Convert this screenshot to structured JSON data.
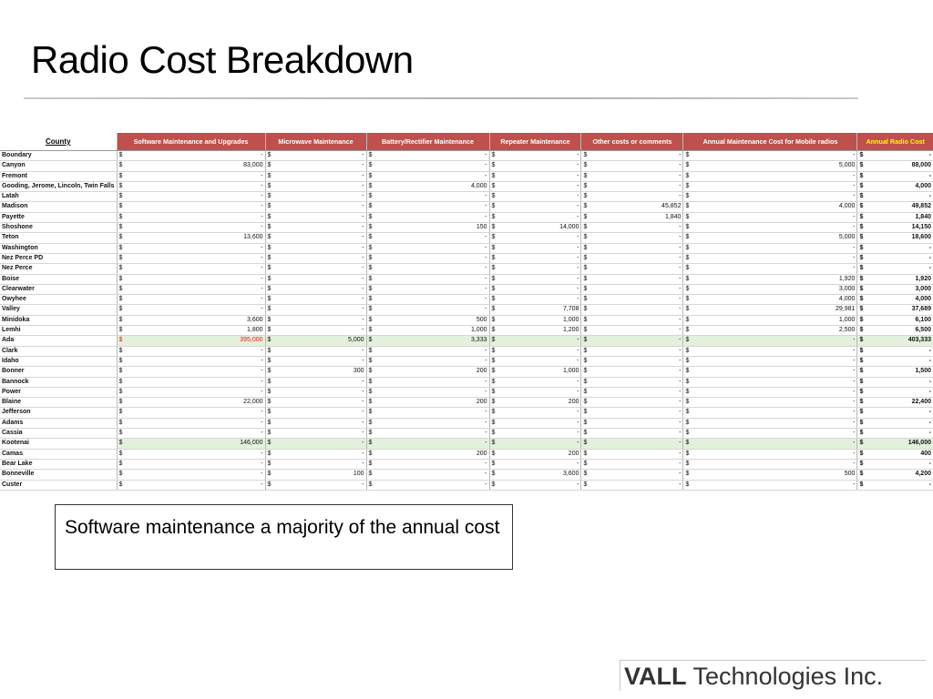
{
  "slide": {
    "title": "Radio Cost Breakdown",
    "callout": "Software maintenance a majority of the annual cost",
    "logo_bold": "VALL",
    "logo_rest": "Technologies Inc."
  },
  "table": {
    "headers": [
      "County",
      "Software Maintenance and Upgrades",
      "Microwave Maintenance",
      "Battery/Rectifier Maintenance",
      "Repeater Maintenance",
      "Other costs or comments",
      "Annual Maintenance Cost for Mobile radios",
      "Annual Radio Cost"
    ],
    "currency": "$",
    "rows": [
      {
        "county": "Boundary",
        "values": [
          "-",
          "-",
          "-",
          "-",
          "-",
          "-",
          "-"
        ]
      },
      {
        "county": "Canyon",
        "values": [
          "83,000",
          "-",
          "-",
          "-",
          "-",
          "5,000",
          "88,000"
        ]
      },
      {
        "county": "Fremont",
        "values": [
          "-",
          "-",
          "-",
          "-",
          "-",
          "-",
          "-"
        ]
      },
      {
        "county": "Gooding, Jerome, Lincoln, Twin Falls",
        "values": [
          "-",
          "-",
          "4,000",
          "-",
          "-",
          "-",
          "4,000"
        ]
      },
      {
        "county": "Latah",
        "values": [
          "-",
          "-",
          "-",
          "-",
          "-",
          "-",
          "-"
        ]
      },
      {
        "county": "Madison",
        "values": [
          "-",
          "-",
          "-",
          "-",
          "45,852",
          "4,000",
          "49,852"
        ]
      },
      {
        "county": "Payette",
        "values": [
          "-",
          "-",
          "-",
          "-",
          "1,840",
          "-",
          "1,840"
        ]
      },
      {
        "county": "Shoshone",
        "values": [
          "-",
          "-",
          "150",
          "14,000",
          "-",
          "-",
          "14,150"
        ]
      },
      {
        "county": "Teton",
        "values": [
          "13,600",
          "-",
          "-",
          "-",
          "-",
          "5,000",
          "18,600"
        ]
      },
      {
        "county": "Washington",
        "values": [
          "-",
          "-",
          "-",
          "-",
          "-",
          "-",
          "-"
        ]
      },
      {
        "county": "Nez Perce PD",
        "values": [
          "-",
          "-",
          "-",
          "-",
          "-",
          "-",
          "-"
        ]
      },
      {
        "county": "Nez Perce",
        "values": [
          "-",
          "-",
          "-",
          "-",
          "-",
          "-",
          "-"
        ]
      },
      {
        "county": "Boise",
        "values": [
          "-",
          "-",
          "-",
          "-",
          "-",
          "1,920",
          "1,920"
        ]
      },
      {
        "county": "Clearwater",
        "values": [
          "-",
          "-",
          "-",
          "-",
          "-",
          "3,000",
          "3,000"
        ]
      },
      {
        "county": "Owyhee",
        "values": [
          "-",
          "-",
          "-",
          "-",
          "-",
          "4,000",
          "4,000"
        ]
      },
      {
        "county": "Valley",
        "values": [
          "-",
          "-",
          "-",
          "7,708",
          "-",
          "29,981",
          "37,689"
        ]
      },
      {
        "county": "Minidoka",
        "values": [
          "3,600",
          "-",
          "500",
          "1,000",
          "-",
          "1,000",
          "6,100"
        ]
      },
      {
        "county": "Lemhi",
        "values": [
          "1,800",
          "-",
          "1,000",
          "1,200",
          "-",
          "2,500",
          "6,500"
        ]
      },
      {
        "county": "Ada",
        "values": [
          "395,000",
          "5,000",
          "3,333",
          "-",
          "-",
          "-",
          "403,333"
        ],
        "highlight": true,
        "red_first": true
      },
      {
        "county": "Clark",
        "values": [
          "-",
          "-",
          "-",
          "-",
          "-",
          "-",
          "-"
        ]
      },
      {
        "county": "Idaho",
        "values": [
          "-",
          "-",
          "-",
          "-",
          "-",
          "-",
          "-"
        ]
      },
      {
        "county": "Bonner",
        "values": [
          "-",
          "300",
          "200",
          "1,000",
          "-",
          "-",
          "1,500"
        ]
      },
      {
        "county": "Bannock",
        "values": [
          "-",
          "-",
          "-",
          "-",
          "-",
          "-",
          "-"
        ]
      },
      {
        "county": "Power",
        "values": [
          "-",
          "-",
          "-",
          "-",
          "-",
          "-",
          "-"
        ]
      },
      {
        "county": "Blaine",
        "values": [
          "22,000",
          "-",
          "200",
          "200",
          "-",
          "-",
          "22,400"
        ]
      },
      {
        "county": "Jefferson",
        "values": [
          "-",
          "-",
          "-",
          "-",
          "-",
          "-",
          "-"
        ]
      },
      {
        "county": "Adams",
        "values": [
          "-",
          "-",
          "-",
          "-",
          "-",
          "-",
          "-"
        ]
      },
      {
        "county": "Cassia",
        "values": [
          "-",
          "-",
          "-",
          "-",
          "-",
          "-",
          "-"
        ]
      },
      {
        "county": "Kootenai",
        "values": [
          "146,000",
          "-",
          "-",
          "-",
          "-",
          "-",
          "146,000"
        ],
        "highlight": true
      },
      {
        "county": "Camas",
        "values": [
          "-",
          "-",
          "200",
          "200",
          "-",
          "-",
          "400"
        ]
      },
      {
        "county": "Bear Lake",
        "values": [
          "-",
          "-",
          "-",
          "-",
          "-",
          "-",
          "-"
        ]
      },
      {
        "county": "Bonneville",
        "values": [
          "-",
          "100",
          "-",
          "3,600",
          "-",
          "500",
          "4,200"
        ]
      },
      {
        "county": "Custer",
        "values": [
          "-",
          "-",
          "-",
          "-",
          "-",
          "-",
          "-"
        ]
      }
    ]
  }
}
